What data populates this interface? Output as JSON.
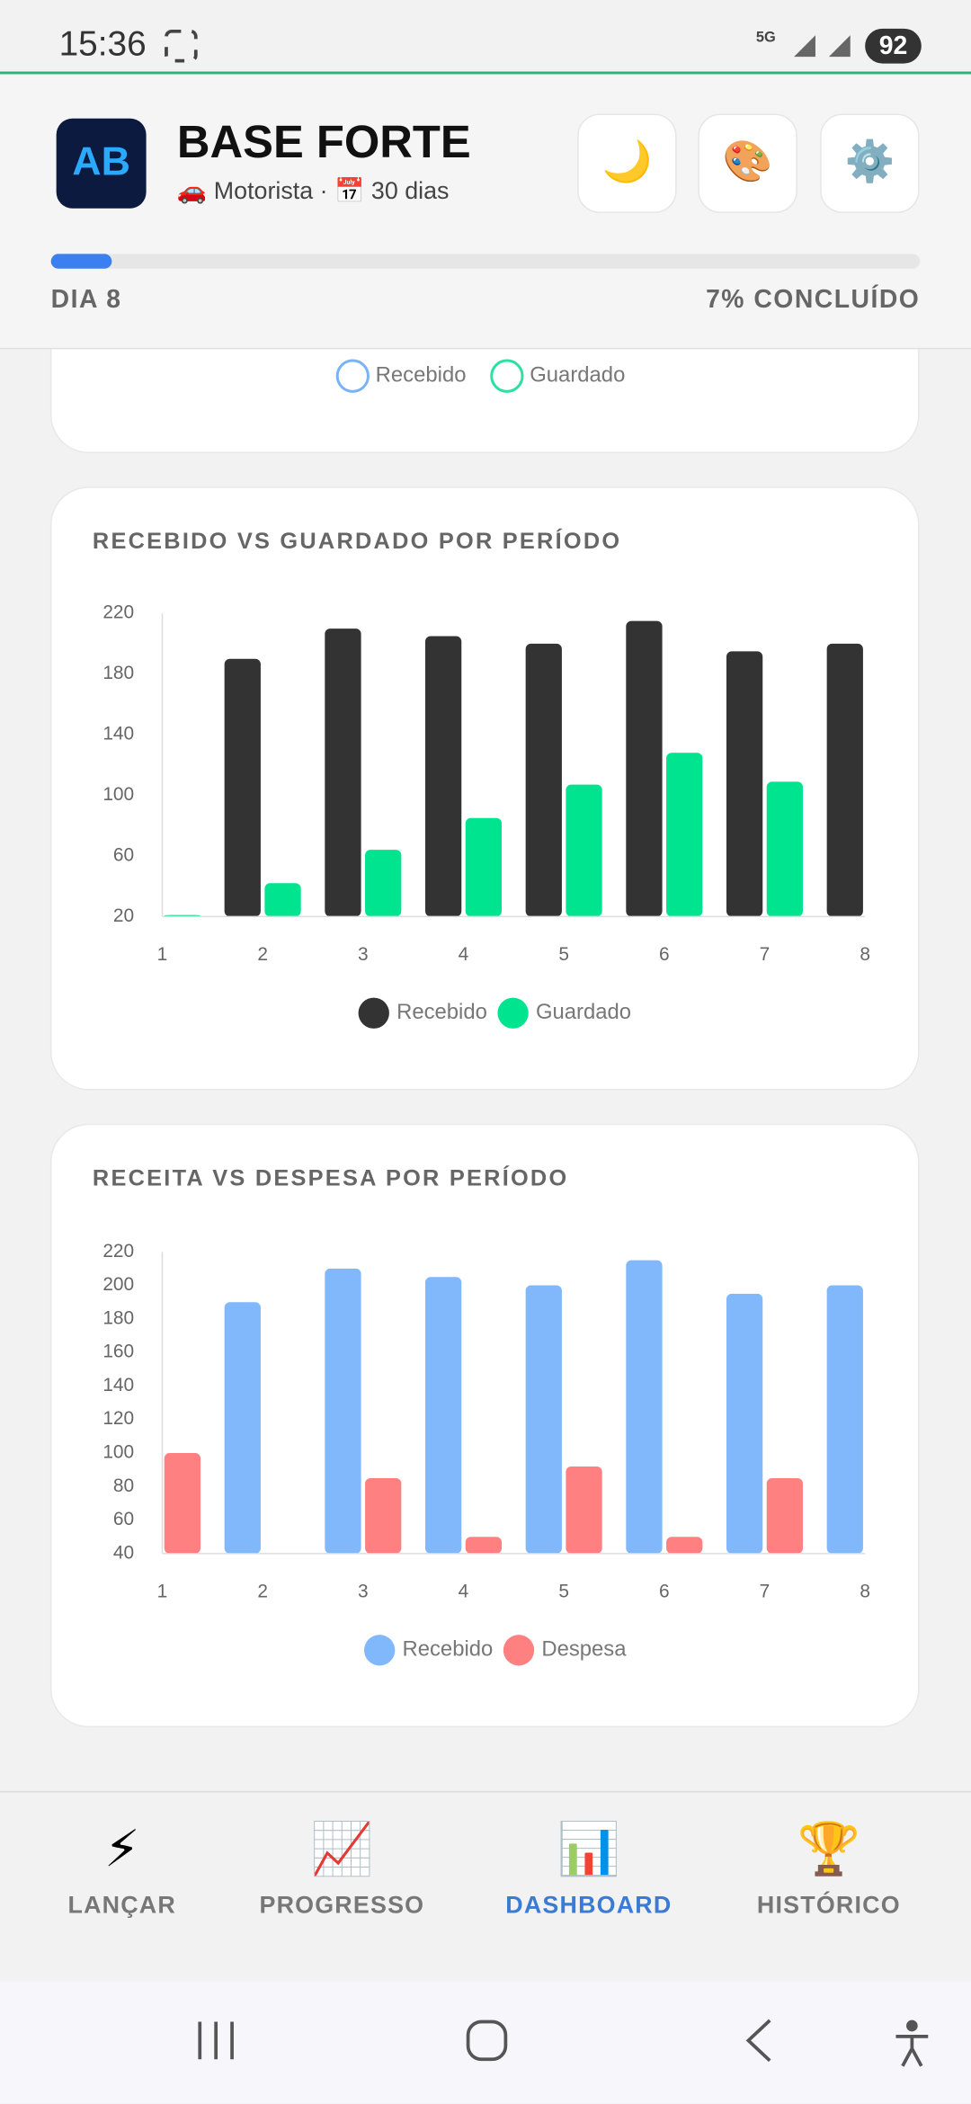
{
  "status_bar": {
    "time": "15:36",
    "network": "5G",
    "battery": "92"
  },
  "header": {
    "logo": "AB",
    "title": "BASE FORTE",
    "subtitle": "🚗 Motorista · 📅 30 dias",
    "buttons": [
      "🌙",
      "🎨",
      "⚙️"
    ]
  },
  "progress": {
    "day": "DIA 8",
    "status": "7% CONCLUÍDO",
    "percent": 7
  },
  "previous_chart_legend": [
    "Recebido",
    "Guardado"
  ],
  "chart_data": [
    {
      "type": "bar",
      "title": "RECEBIDO VS GUARDADO POR PERÍODO",
      "categories": [
        "1",
        "2",
        "3",
        "4",
        "5",
        "6",
        "7",
        "8"
      ],
      "series": [
        {
          "name": "Recebido",
          "color": "#333333",
          "values": [
            null,
            190,
            210,
            205,
            200,
            215,
            195,
            200
          ]
        },
        {
          "name": "Guardado",
          "color": "#00e38f",
          "values": [
            21,
            42,
            64,
            85,
            107,
            128,
            109,
            null
          ]
        }
      ],
      "ylim": [
        20,
        220
      ],
      "yticks": [
        20,
        60,
        100,
        140,
        180,
        220
      ],
      "grid": false
    },
    {
      "type": "bar",
      "title": "RECEITA VS DESPESA POR PERÍODO",
      "categories": [
        "1",
        "2",
        "3",
        "4",
        "5",
        "6",
        "7",
        "8"
      ],
      "series": [
        {
          "name": "Recebido",
          "color": "#80b8fb",
          "values": [
            null,
            190,
            210,
            205,
            200,
            215,
            195,
            200
          ]
        },
        {
          "name": "Despesa",
          "color": "#ff8080",
          "values": [
            100,
            40,
            85,
            50,
            92,
            50,
            85,
            null
          ]
        }
      ],
      "ylim": [
        40,
        220
      ],
      "yticks": [
        40,
        60,
        80,
        100,
        120,
        140,
        160,
        180,
        200,
        220
      ],
      "grid": false
    }
  ],
  "nav": [
    {
      "icon": "⚡",
      "label": "LANÇAR",
      "active": false
    },
    {
      "icon": "📈",
      "label": "PROGRESSO",
      "active": false
    },
    {
      "icon": "📊",
      "label": "DASHBOARD",
      "active": true
    },
    {
      "icon": "🏆",
      "label": "HISTÓRICO",
      "active": false
    }
  ]
}
